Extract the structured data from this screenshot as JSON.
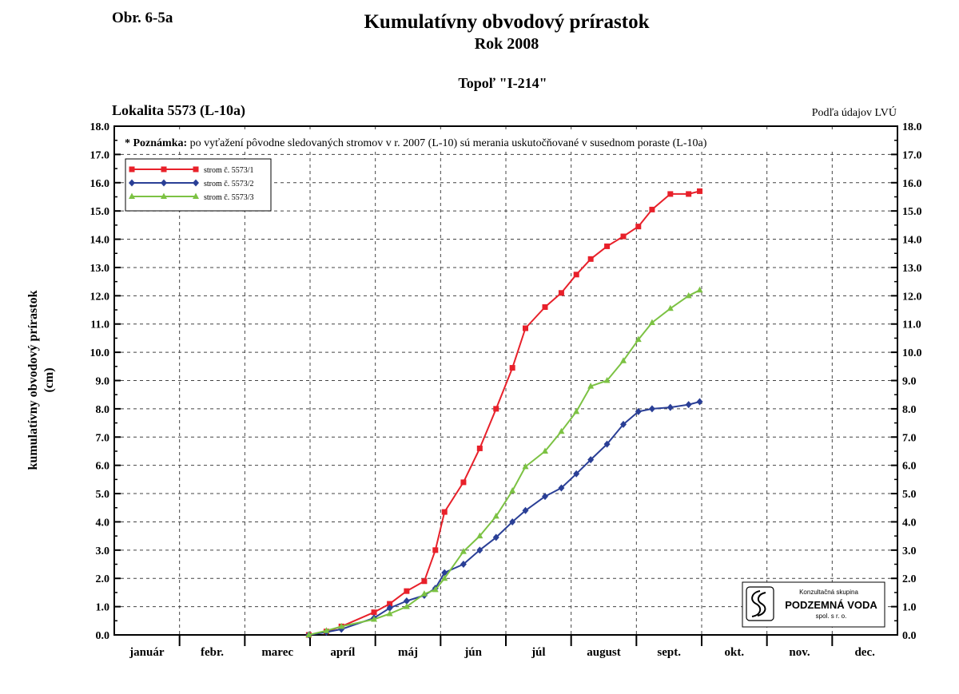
{
  "header": {
    "figure_label": "Obr. 6-5a",
    "title": "Kumulatívny obvodový prírastok",
    "subtitle": "Rok 2008",
    "species": "Topoľ \"I-214\"",
    "locality": "Lokalita 5573 (L-10a)",
    "source": "Podľa údajov LVÚ"
  },
  "note": {
    "bold": "* Poznámka:",
    "text": " po vyťažení pôvodne sledovaných stromov v r. 2007 (L-10) sú merania uskutočňované v susednom poraste (L-10a)"
  },
  "logo": {
    "line1": "Konzultačná skupina",
    "line2": "PODZEMNÁ VODA",
    "line3": "spol. s r. o."
  },
  "colors": {
    "series1": "#e8202a",
    "series2": "#2a3f96",
    "series3": "#7cc243",
    "grid": "#444444"
  },
  "chart_data": {
    "type": "line",
    "title": "Kumulatívny obvodový prírastok",
    "ylabel_line1": "kumulatívny obvodový prírastok",
    "ylabel_line2": "(cm)",
    "ylim": [
      0,
      18
    ],
    "y_ticks": [
      "0.0",
      "1.0",
      "2.0",
      "3.0",
      "4.0",
      "5.0",
      "6.0",
      "7.0",
      "8.0",
      "9.0",
      "10.0",
      "11.0",
      "12.0",
      "13.0",
      "14.0",
      "15.0",
      "16.0",
      "17.0",
      "18.0"
    ],
    "x_unit": "month (0 = 1 Jan, 12 = 31 Dec)",
    "xlim": [
      0,
      12
    ],
    "months": [
      "január",
      "febr.",
      "marec",
      "apríl",
      "máj",
      "jún",
      "júl",
      "august",
      "sept.",
      "okt.",
      "nov.",
      "dec."
    ],
    "grid": true,
    "legend_position": "top-left",
    "series": [
      {
        "name": "strom č. 5573/1",
        "marker": "square",
        "x": [
          2.98,
          3.25,
          3.48,
          3.98,
          4.22,
          4.48,
          4.75,
          4.92,
          5.06,
          5.35,
          5.6,
          5.85,
          6.1,
          6.3,
          6.6,
          6.85,
          7.08,
          7.3,
          7.55,
          7.8,
          8.03,
          8.24,
          8.52,
          8.8,
          8.97
        ],
        "y": [
          0.0,
          0.12,
          0.3,
          0.8,
          1.1,
          1.55,
          1.9,
          3.0,
          4.35,
          5.4,
          6.6,
          8.0,
          9.45,
          10.85,
          11.6,
          12.1,
          12.75,
          13.3,
          13.75,
          14.1,
          14.45,
          15.05,
          15.6,
          15.6,
          15.7
        ]
      },
      {
        "name": "strom č. 5573/2",
        "marker": "diamond",
        "x": [
          2.98,
          3.25,
          3.48,
          3.98,
          4.22,
          4.48,
          4.75,
          4.92,
          5.06,
          5.35,
          5.6,
          5.85,
          6.1,
          6.3,
          6.6,
          6.85,
          7.08,
          7.3,
          7.55,
          7.8,
          8.03,
          8.24,
          8.52,
          8.8,
          8.97
        ],
        "y": [
          0.0,
          0.1,
          0.2,
          0.6,
          0.95,
          1.2,
          1.4,
          1.65,
          2.2,
          2.5,
          3.0,
          3.45,
          4.0,
          4.4,
          4.9,
          5.2,
          5.7,
          6.2,
          6.75,
          7.45,
          7.9,
          8.0,
          8.05,
          8.15,
          8.25
        ]
      },
      {
        "name": "strom č. 5573/3",
        "marker": "triangle",
        "x": [
          2.98,
          3.25,
          3.48,
          3.98,
          4.22,
          4.48,
          4.75,
          4.92,
          5.06,
          5.35,
          5.6,
          5.85,
          6.1,
          6.3,
          6.6,
          6.85,
          7.08,
          7.3,
          7.55,
          7.8,
          8.03,
          8.24,
          8.52,
          8.8,
          8.97
        ],
        "y": [
          0.0,
          0.15,
          0.3,
          0.55,
          0.75,
          1.0,
          1.45,
          1.6,
          2.0,
          2.95,
          3.5,
          4.2,
          5.1,
          5.95,
          6.5,
          7.2,
          7.9,
          8.8,
          9.0,
          9.7,
          10.45,
          11.05,
          11.55,
          12.0,
          12.2
        ]
      }
    ]
  }
}
